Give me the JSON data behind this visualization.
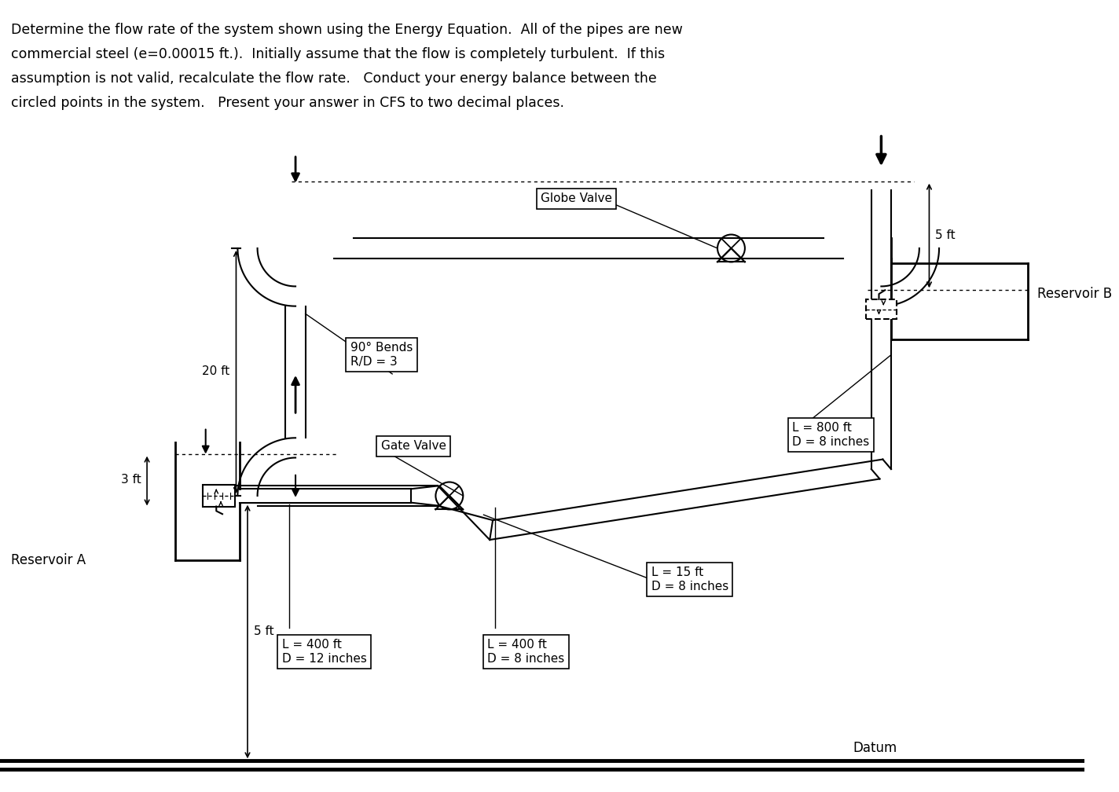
{
  "bg_color": "#ffffff",
  "text_color": "#000000",
  "line_color": "#000000",
  "title_lines": [
    "Determine the flow rate of the system shown using the Energy Equation.  All of the pipes are new",
    "commercial steel (e=0.00015 ft.).  Initially assume that the flow is completely turbulent.  If this",
    "assumption is not valid, recalculate the flow rate.   Conduct your energy balance between the",
    "circled points in the system.   Present your answer in CFS to two decimal places."
  ],
  "datum_label": "Datum",
  "reservoir_a_label": "Reservoir A",
  "reservoir_b_label": "Reservoir B",
  "globe_valve_label": "Globe Valve",
  "gate_valve_label": "Gate Valve",
  "bends_label": "90° Bends\nR/D = 3",
  "dim_20ft": "20 ft",
  "dim_3ft": "3 ft",
  "dim_5ft_left": "5 ft",
  "dim_5ft_right": "5 ft",
  "pipe1_label": "L = 400 ft\nD = 12 inches",
  "pipe2_label": "L = 400 ft\nD = 8 inches",
  "pipe3_label": "L = 15 ft\nD = 8 inches",
  "pipe4_label": "L = 800 ft\nD = 8 inches"
}
